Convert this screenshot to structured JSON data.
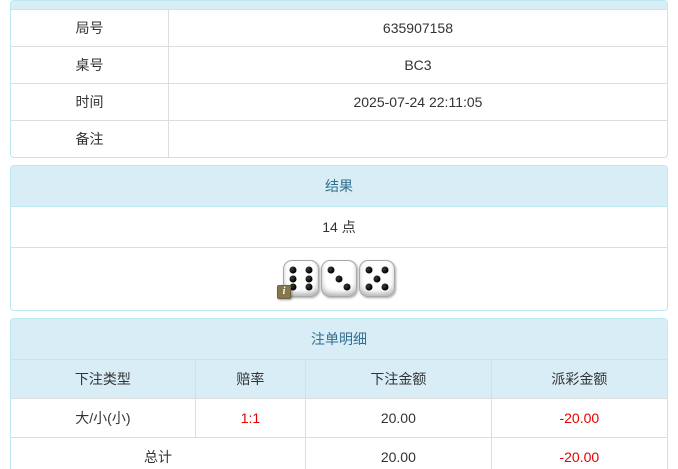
{
  "colors": {
    "heading_bg": "#d9edf7",
    "panel_border": "#bce8f1",
    "heading_text": "#31708f",
    "body_text": "#333333",
    "negative_red": "#e60000",
    "inner_border": "#dddddd"
  },
  "info": {
    "rows": [
      {
        "label": "局号",
        "value": "635907158"
      },
      {
        "label": "桌号",
        "value": "BC3"
      },
      {
        "label": "时间",
        "value": "2025-07-24 22:11:05"
      },
      {
        "label": "备注",
        "value": ""
      }
    ]
  },
  "result": {
    "title": "结果",
    "points": "14 点",
    "dice": [
      6,
      3,
      5
    ],
    "info_badge": "i"
  },
  "bets": {
    "title": "注单明细",
    "headers": [
      "下注类型",
      "赔率",
      "下注金额",
      "派彩金额"
    ],
    "rows": [
      {
        "type": "大/小(小)",
        "odds": "1:1",
        "amount": "20.00",
        "payout": "-20.00"
      }
    ],
    "total": {
      "label": "总计",
      "amount": "20.00",
      "payout": "-20.00"
    }
  }
}
